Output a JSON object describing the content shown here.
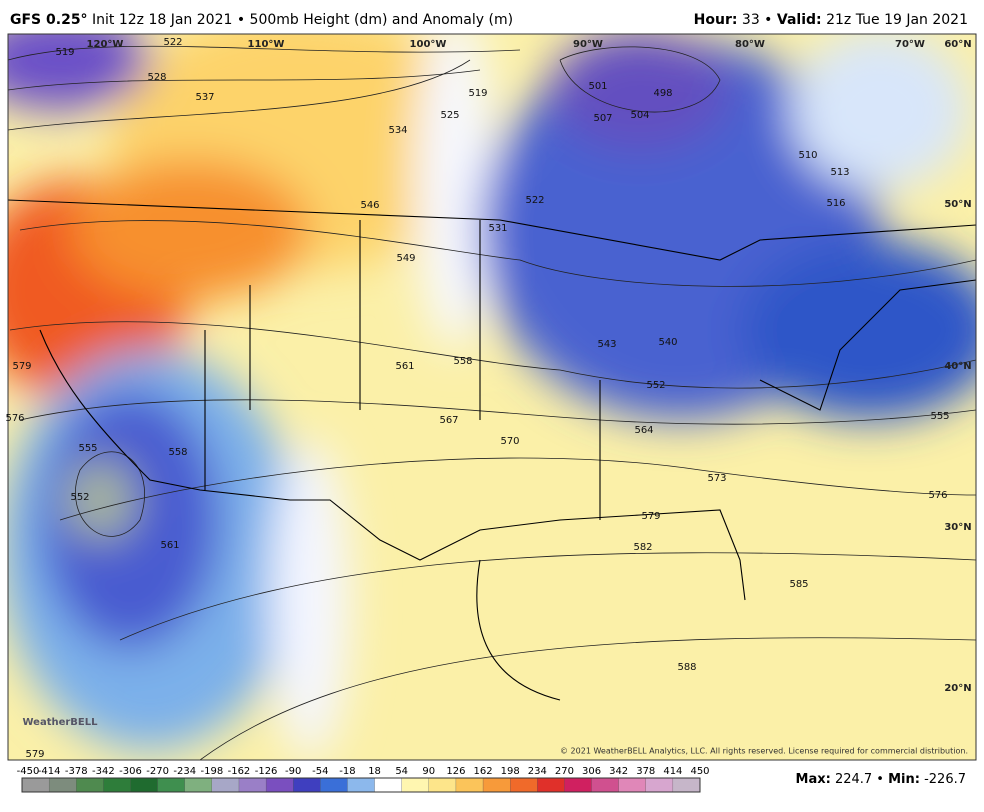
{
  "header": {
    "left": [
      {
        "text": "GFS 0.25°",
        "bold": true
      },
      {
        "text": " Init 12z 18 Jan 2021 • 500mb Height (dm) and Anomaly (m)",
        "bold": false
      }
    ],
    "right": [
      {
        "text": "Hour:",
        "bold": true
      },
      {
        "text": " 33 • ",
        "bold": false
      },
      {
        "text": "Valid:",
        "bold": true
      },
      {
        "text": " 21z Tue 19 Jan 2021",
        "bold": false
      }
    ]
  },
  "map": {
    "longitude_labels": [
      "120°W",
      "110°W",
      "100°W",
      "90°W",
      "80°W",
      "70°W"
    ],
    "latitude_labels": [
      "60°N",
      "50°N",
      "40°N",
      "30°N",
      "20°N"
    ],
    "contour_labels": [
      "519",
      "522",
      "528",
      "537",
      "534",
      "546",
      "549",
      "519",
      "525",
      "531",
      "522",
      "501",
      "498",
      "504",
      "507",
      "510",
      "513",
      "516",
      "543",
      "540",
      "552",
      "561",
      "558",
      "567",
      "570",
      "564",
      "573",
      "576",
      "555",
      "579",
      "582",
      "585",
      "588",
      "579",
      "576",
      "555",
      "558",
      "552",
      "561",
      "579"
    ],
    "logo": "WeatherBELL",
    "copyright": "© 2021 WeatherBELL Analytics, LLC. All rights reserved. License required for commercial distribution."
  },
  "colorbar": {
    "labels": [
      "-450",
      "-414",
      "-378",
      "-342",
      "-306",
      "-270",
      "-234",
      "-198",
      "-162",
      "-126",
      "-90",
      "-54",
      "-18",
      "18",
      "54",
      "90",
      "126",
      "162",
      "198",
      "234",
      "270",
      "306",
      "342",
      "378",
      "414",
      "450"
    ],
    "colors": [
      "#9a9a9a",
      "#7d8c7d",
      "#4f8a4f",
      "#2e7d3a",
      "#1f6b2f",
      "#3f8f4f",
      "#7fb07f",
      "#a7a7c7",
      "#9a7fc7",
      "#7a4fbf",
      "#3f3fbf",
      "#3a6fd8",
      "#8cb8ec",
      "#ffffff",
      "#fff6b0",
      "#fde58a",
      "#fbc45a",
      "#f79a3a",
      "#f06a2a",
      "#e0302a",
      "#d02060",
      "#d0508f",
      "#e087b8",
      "#d7a6cf",
      "#c6b6c9"
    ],
    "stats": [
      {
        "text": "Max:",
        "bold": true
      },
      {
        "text": " 224.7 • ",
        "bold": false
      },
      {
        "text": "Min:",
        "bold": true
      },
      {
        "text": " -226.7",
        "bold": false
      }
    ]
  }
}
